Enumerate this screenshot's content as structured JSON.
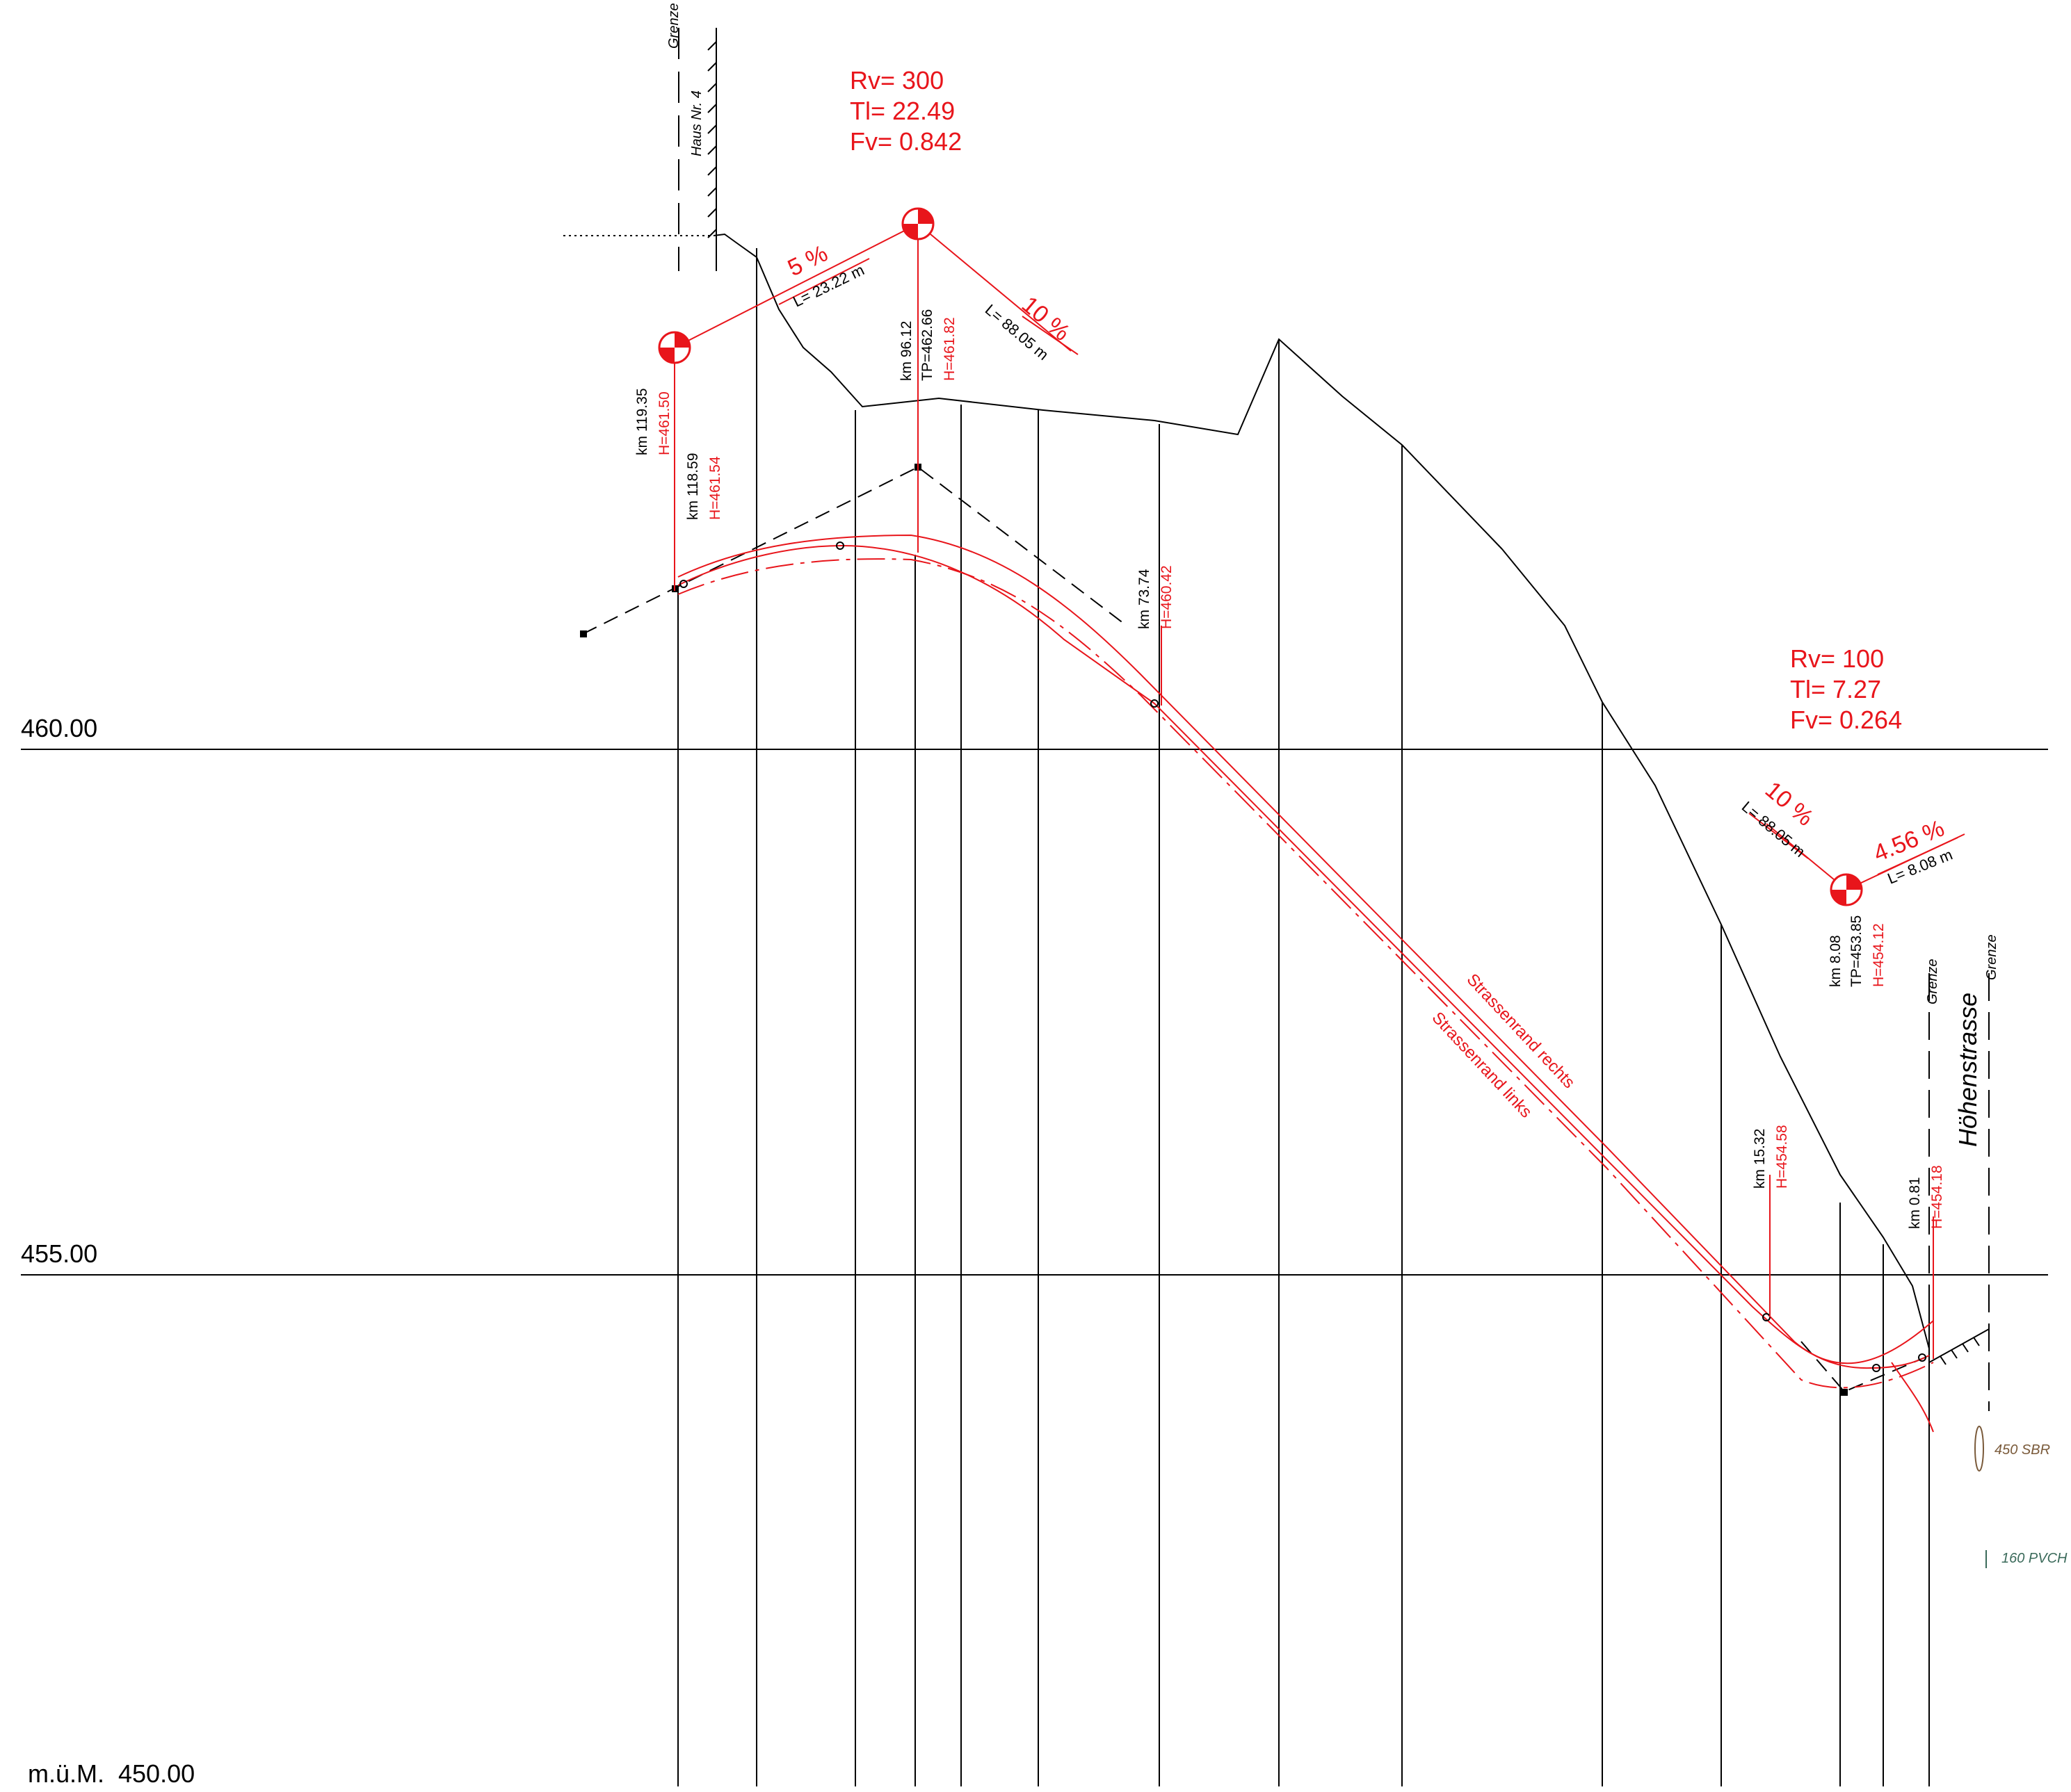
{
  "levels": {
    "l460": "460.00",
    "l455": "455.00",
    "l450": "450.00",
    "unit": "m.ü.M."
  },
  "curves": {
    "c1": {
      "rv": "Rv=   300",
      "tl": "Tl=  22.49",
      "fv": "Fv=  0.842"
    },
    "c2": {
      "rv": "Rv=  100",
      "tl": "Tl=  7.27",
      "fv": "Fv= 0.264"
    }
  },
  "grades": {
    "g1": {
      "pct": "5 %",
      "len": "L= 23.22 m"
    },
    "g2": {
      "pct": "10 %",
      "len": "L= 88.05 m"
    },
    "g3": {
      "pct": "10 %",
      "len": "L= 88.05 m"
    },
    "g4": {
      "pct": "4.56 %",
      "len": "L= 8.08 m"
    }
  },
  "stations": {
    "s1": {
      "km": "km 119.35",
      "h": "H=461.50"
    },
    "s2": {
      "km": "km 118.59",
      "h": "H=461.54"
    },
    "s3": {
      "km": "km 96.12",
      "tp": "TP=462.66",
      "h": "H=461.82"
    },
    "s4": {
      "km": "km 73.74",
      "h": "H=460.42"
    },
    "s5": {
      "km": "km 15.32",
      "h": "H=454.58"
    },
    "s6": {
      "km": "km 8.08",
      "tp": "TP=453.85",
      "h": "H=454.12"
    },
    "s7": {
      "km": "km 0.81",
      "h": "H=454.18"
    }
  },
  "labels": {
    "grenze_left": "Grenze",
    "haus": "Haus Nr. 4",
    "grenze_r1": "Grenze",
    "grenze_r2": "Grenze",
    "street": "Höhenstrasse",
    "rand_rechts": "Strassenrand rechts",
    "rand_links": "Strassenrand links",
    "pipe1": "450 SBR",
    "pipe2": "160 PVCH"
  },
  "colors": {
    "design": "#e8151b",
    "terrain": "#000000"
  }
}
